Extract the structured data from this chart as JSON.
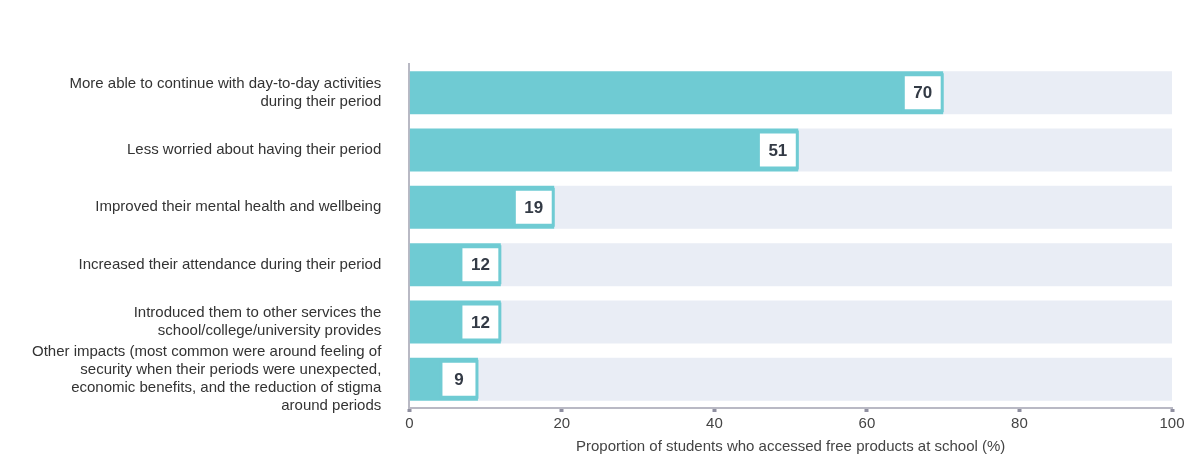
{
  "chart_data": {
    "type": "bar",
    "orientation": "horizontal",
    "stacked": true,
    "xlabel": "Proportion of students who accessed free products at school (%)",
    "categories": [
      "More able to continue with day-to-day activities during their period",
      "Less worried about having their period",
      "Improved their mental health and wellbeing",
      "Increased their attendance during their period",
      "Introduced them to other services the school/college/university provides",
      "Other impacts (most common were around feeling of security when their periods were unexpected, economic benefits, and the reduction of stigma around periods"
    ],
    "series": [
      {
        "color": "#6fcbd3",
        "values": [
          70,
          51,
          19,
          12,
          12,
          9
        ],
        "value_labels": [
          "70",
          "51",
          "19",
          "12",
          "12",
          "9"
        ]
      },
      {
        "color": "#e9edf5",
        "values": [
          30,
          49,
          81,
          88,
          88,
          91
        ]
      }
    ],
    "xlim": [
      0,
      100
    ],
    "xticks": [
      0,
      20,
      40,
      60,
      80,
      100
    ],
    "grid": false,
    "legend": false
  }
}
